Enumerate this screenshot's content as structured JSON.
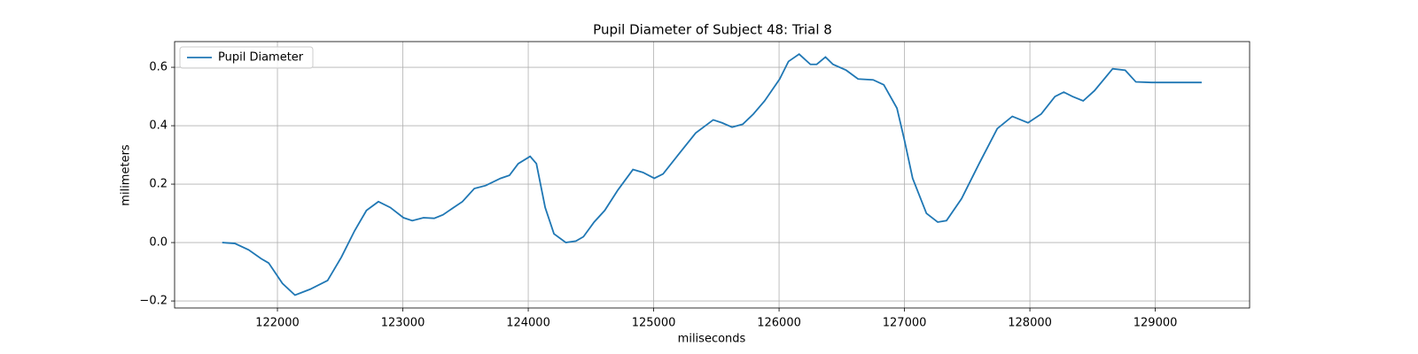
{
  "chart_data": {
    "type": "line",
    "title": "Pupil Diameter of Subject 48: Trial 8",
    "xlabel": "miliseconds",
    "ylabel": "milimeters",
    "x": [
      121560,
      121660,
      121770,
      121870,
      121930,
      122040,
      122140,
      122260,
      122400,
      122510,
      122615,
      122710,
      122805,
      122900,
      123005,
      123075,
      123165,
      123250,
      123320,
      123405,
      123475,
      123570,
      123660,
      123780,
      123850,
      123920,
      124015,
      124065,
      124135,
      124205,
      124300,
      124380,
      124440,
      124525,
      124610,
      124715,
      124835,
      124915,
      125005,
      125075,
      125195,
      125335,
      125475,
      125545,
      125625,
      125710,
      125795,
      125885,
      126005,
      126075,
      126160,
      126250,
      126300,
      126370,
      126430,
      126535,
      126630,
      126750,
      126835,
      126940,
      127000,
      127065,
      127175,
      127265,
      127335,
      127455,
      127595,
      127740,
      127860,
      127985,
      128090,
      128200,
      128270,
      128340,
      128425,
      128515,
      128660,
      128760,
      128845,
      128970,
      129370
    ],
    "series": [
      {
        "name": "Pupil Diameter",
        "color": "#1f77b4",
        "values": [
          0.0,
          -0.003,
          -0.025,
          -0.055,
          -0.07,
          -0.14,
          -0.18,
          -0.16,
          -0.13,
          -0.05,
          0.04,
          0.11,
          0.14,
          0.12,
          0.085,
          0.075,
          0.085,
          0.083,
          0.095,
          0.12,
          0.14,
          0.185,
          0.195,
          0.22,
          0.23,
          0.27,
          0.295,
          0.27,
          0.12,
          0.03,
          0.0,
          0.005,
          0.02,
          0.07,
          0.11,
          0.18,
          0.25,
          0.24,
          0.22,
          0.235,
          0.3,
          0.375,
          0.42,
          0.41,
          0.395,
          0.405,
          0.44,
          0.485,
          0.56,
          0.62,
          0.645,
          0.61,
          0.61,
          0.635,
          0.61,
          0.59,
          0.56,
          0.557,
          0.54,
          0.46,
          0.35,
          0.22,
          0.1,
          0.07,
          0.075,
          0.15,
          0.27,
          0.39,
          0.432,
          0.41,
          0.44,
          0.5,
          0.515,
          0.5,
          0.485,
          0.52,
          0.595,
          0.59,
          0.55,
          0.548,
          0.548
        ]
      }
    ],
    "xlim": [
      121180,
      129752
    ],
    "ylim": [
      -0.224,
      0.688
    ],
    "xticks": [
      122000,
      123000,
      124000,
      125000,
      126000,
      127000,
      128000,
      129000
    ],
    "yticks": [
      {
        "value": -0.2,
        "label": "−0.2"
      },
      {
        "value": 0.0,
        "label": "0.0"
      },
      0.2,
      0.4,
      0.6
    ],
    "grid": true,
    "legend": "upper left"
  }
}
